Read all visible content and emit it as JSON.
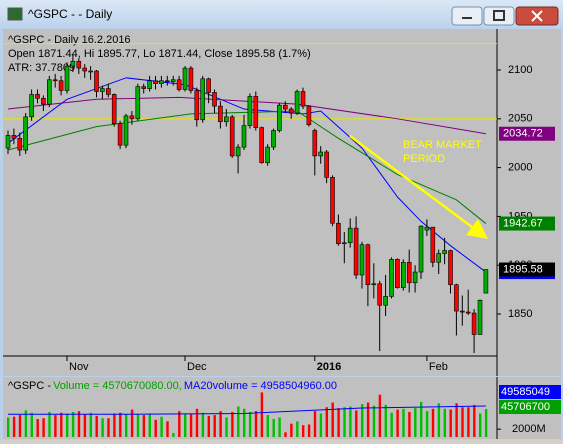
{
  "window": {
    "title": "^GSPC -  - Daily"
  },
  "chart_data": [
    {
      "type": "candlestick",
      "header_lines": [
        "^GSPC - Daily 16.2.2016",
        "Open 1871.44, Hi 1895.77, Lo 1871.44, Close 1895.58 (1.7%)",
        "ATR: 37.7809"
      ],
      "annotation": [
        "BEAR MARKET",
        "PERIOD"
      ],
      "categories": [
        null,
        null,
        null,
        null,
        null,
        null,
        null,
        null,
        null,
        null,
        "Nov",
        null,
        null,
        null,
        null,
        null,
        null,
        null,
        null,
        null,
        null,
        null,
        null,
        null,
        null,
        null,
        null,
        null,
        null,
        null,
        "Dec",
        null,
        null,
        null,
        null,
        null,
        null,
        null,
        null,
        null,
        null,
        null,
        null,
        null,
        null,
        null,
        null,
        null,
        null,
        null,
        null,
        null,
        "2016",
        null,
        null,
        null,
        null,
        null,
        null,
        null,
        null,
        null,
        null,
        null,
        null,
        null,
        null,
        null,
        null,
        null,
        null,
        "Feb",
        null,
        null,
        null,
        null,
        null,
        null,
        null,
        null,
        null,
        null
      ],
      "open": [
        2020,
        2033,
        2030,
        2018,
        2052,
        2075,
        2071,
        2065,
        2090,
        2089,
        2079,
        2104,
        2109,
        2102,
        2099,
        2099,
        2078,
        2081,
        2075,
        2045,
        2023,
        2053,
        2050,
        2083,
        2081,
        2089,
        2086,
        2089,
        2088,
        2090,
        2080,
        2102,
        2079,
        2049,
        2091,
        2077,
        2063,
        2047,
        2052,
        2012,
        2021,
        2043,
        2073,
        2041,
        2005,
        2021,
        2038,
        2064,
        2060,
        2056,
        2078,
        2063,
        2038,
        2012,
        2016,
        1990,
        1943,
        1922,
        1923,
        1938,
        1890,
        1921,
        1880,
        1881,
        1859,
        1868,
        1906,
        1877,
        1903,
        1882,
        1893,
        1936,
        1939,
        1903,
        1912,
        1915,
        1880,
        1853,
        1852,
        1851,
        1829,
        1871.44
      ],
      "high": [
        2038,
        2040,
        2036,
        2056,
        2080,
        2080,
        2074,
        2094,
        2096,
        2094,
        2108,
        2116,
        2112,
        2106,
        2104,
        2100,
        2084,
        2086,
        2076,
        2048,
        2055,
        2058,
        2086,
        2086,
        2094,
        2094,
        2094,
        2094,
        2094,
        2094,
        2104,
        2104,
        2082,
        2094,
        2092,
        2080,
        2068,
        2060,
        2054,
        2024,
        2054,
        2076,
        2078,
        2042,
        2024,
        2040,
        2066,
        2068,
        2062,
        2080,
        2082,
        2064,
        2040,
        2022,
        2018,
        1992,
        1952,
        1934,
        1948,
        1950,
        1924,
        1922,
        1902,
        1884,
        1890,
        1908,
        1907,
        1906,
        1916,
        1900,
        1941,
        1947,
        1939,
        1916,
        1928,
        1916,
        1881,
        1869,
        1875,
        1855,
        1865,
        1895.77
      ],
      "low": [
        2014,
        2024,
        2012,
        2014,
        2048,
        2066,
        2058,
        2062,
        2082,
        2074,
        2076,
        2098,
        2096,
        2092,
        2090,
        2072,
        2070,
        2072,
        2042,
        2019,
        2020,
        2044,
        2048,
        2076,
        2078,
        2080,
        2082,
        2084,
        2084,
        2078,
        2078,
        2076,
        2042,
        2046,
        2066,
        2056,
        2040,
        2042,
        2010,
        1994,
        2018,
        2040,
        2038,
        2004,
        2002,
        2018,
        2036,
        2056,
        2050,
        2054,
        2060,
        2042,
        1992,
        2004,
        1984,
        1940,
        1920,
        1902,
        1918,
        1886,
        1876,
        1858,
        1866,
        1812,
        1848,
        1866,
        1876,
        1874,
        1872,
        1872,
        1886,
        1930,
        1898,
        1891,
        1901,
        1871,
        1828,
        1838,
        1849,
        1810,
        1829,
        1871.44
      ],
      "close": [
        2033,
        2030,
        2018,
        2052,
        2075,
        2071,
        2065,
        2090,
        2089,
        2079,
        2104,
        2109,
        2102,
        2099,
        2099,
        2078,
        2081,
        2075,
        2045,
        2023,
        2053,
        2050,
        2083,
        2081,
        2089,
        2086,
        2089,
        2088,
        2090,
        2080,
        2102,
        2079,
        2049,
        2091,
        2077,
        2063,
        2047,
        2052,
        2012,
        2021,
        2043,
        2073,
        2041,
        2005,
        2021,
        2038,
        2064,
        2060,
        2056,
        2078,
        2063,
        2044,
        2012,
        2016,
        1990,
        1943,
        1922,
        1923,
        1938,
        1890,
        1921,
        1880,
        1881,
        1859,
        1868,
        1906,
        1877,
        1903,
        1882,
        1893,
        1940,
        1939,
        1903,
        1912,
        1915,
        1880,
        1853,
        1852,
        1851,
        1829,
        1864,
        1895.58
      ],
      "up_color": "#00b000",
      "down_color": "#ff0000",
      "close_tag_color": "#000000",
      "series": [
        {
          "color": "#0000ff",
          "x": [
            0,
            10,
            20,
            30,
            40,
            50,
            53,
            60,
            66,
            70,
            75,
            81
          ],
          "values": [
            2025,
            2070,
            2092,
            2085,
            2060,
            2055,
            2058,
            2020,
            1970,
            1945,
            1920,
            1892.99
          ]
        },
        {
          "color": "#008000",
          "x": [
            0,
            15,
            31,
            49,
            56,
            66,
            76,
            81
          ],
          "values": [
            2018,
            2042,
            2055,
            2058,
            2030,
            1993,
            1967,
            1942.67
          ]
        },
        {
          "color": "#800080",
          "x": [
            0,
            15,
            29,
            49,
            66,
            81
          ],
          "values": [
            2060,
            2070,
            2072,
            2065,
            2050,
            2034.72
          ]
        }
      ],
      "reference_lines": [
        {
          "value": 2127,
          "color": "#e8e800"
        },
        {
          "value": 2050,
          "color": "#e8e800"
        }
      ],
      "ylim": [
        1808,
        2141
      ],
      "yticks": [
        1850,
        1900,
        1950,
        2000,
        2050,
        2100
      ]
    },
    {
      "type": "bar",
      "header": [
        "^GSPC - ",
        "Volume = 4570670080.00, ",
        "MA20volume = 4958504960.00"
      ],
      "values": [
        3500000000.0,
        3600000000.0,
        3800000000.0,
        4400000000.0,
        4100000000.0,
        3300000000.0,
        3400000000.0,
        4200000000.0,
        3800000000.0,
        4100000000.0,
        4000000000.0,
        4200000000.0,
        4300000000.0,
        3900000000.0,
        4100000000.0,
        3700000000.0,
        3400000000.0,
        3400000000.0,
        4000000000.0,
        4100000000.0,
        3900000000.0,
        4500000000.0,
        3900000000.0,
        3800000000.0,
        4000000000.0,
        3200000000.0,
        3600000000.0,
        3000000000.0,
        1500000000.0,
        4300000000.0,
        4000000000.0,
        3900000000.0,
        4600000000.0,
        4100000000.0,
        3700000000.0,
        3800000000.0,
        4300000000.0,
        3500000000.0,
        4200000000.0,
        4900000000.0,
        4600000000.0,
        4200000000.0,
        4300000000.0,
        6700000000.0,
        3800000000.0,
        3300000000.0,
        3500000000.0,
        1600000000.0,
        2700000000.0,
        3000000000.0,
        2500000000.0,
        2600000000.0,
        4300000000.0,
        4000000000.0,
        4800000000.0,
        5400000000.0,
        4700000000.0,
        4800000000.0,
        4900000000.0,
        4400000000.0,
        5200000000.0,
        5400000000.0,
        5000000000.0,
        6400000000.0,
        5100000000.0,
        4100000000.0,
        4500000000.0,
        4600000000.0,
        4200000000.0,
        4700000000.0,
        5500000000.0,
        4300000000.0,
        4600000000.0,
        5300000000.0,
        4600000000.0,
        4500000000.0,
        5300000000.0,
        4800000000.0,
        4800000000.0,
        5100000000.0,
        4000000000.0,
        4570670080
      ],
      "up_color": "#00c000",
      "down_color": "#ff0000",
      "series": [
        {
          "color": "#0000ff",
          "x": [
            0,
            20,
            40,
            60,
            81
          ],
          "values": [
            3900000000.0,
            3900000000.0,
            4000000000.0,
            4700000000.0,
            4958504960
          ]
        }
      ],
      "tags": [
        {
          "label": "49585049",
          "color": "#0000ff"
        },
        {
          "label": "45706700",
          "color": "#00a000"
        }
      ],
      "ylim": [
        1000000000,
        7000000000
      ],
      "yticks": [
        {
          "value": 2000000000,
          "label": "2000M"
        }
      ]
    }
  ]
}
